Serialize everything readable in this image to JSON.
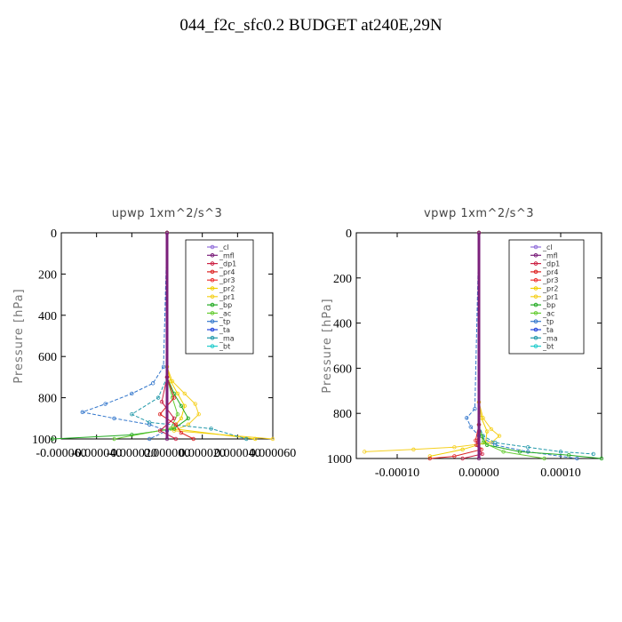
{
  "title": "044_f2c_sfc0.2  BUDGET at240E,29N",
  "legend_entries": [
    "_cl",
    "_mfl",
    "_dp1",
    "_pr4",
    "_pr3",
    "_pr2",
    "_pr1",
    "_bp",
    "_ac",
    "_tp",
    "_ta",
    "_ma",
    "_bt"
  ],
  "colors": {
    "_cl": "#9370db",
    "_mfl": "#7b1f7b",
    "_dp1": "#cc2244",
    "_pr4": "#dd2222",
    "_pr3": "#ee3333",
    "_pr2": "#f0d000",
    "_pr1": "#f5d020",
    "_bp": "#22aa22",
    "_ac": "#66cc33",
    "_tp": "#3377cc",
    "_ta": "#2244dd",
    "_ma": "#2299aa",
    "_bt": "#22cccc"
  },
  "chart_data": [
    {
      "type": "line",
      "title": "upwp   1xm^2/s^3",
      "ylabel": "Pressure [hPa]",
      "xlim": [
        -6e-05,
        6e-05
      ],
      "ylim": [
        1000,
        0
      ],
      "xticks": [
        "-0.000060",
        "-0.000040",
        "-0.000020",
        "0.000000",
        "0.000020",
        "0.000040",
        "0.000060"
      ],
      "yticks": [
        "0",
        "200",
        "400",
        "600",
        "800",
        "1000"
      ],
      "series": [
        {
          "name": "_pr1",
          "x": [
            0,
            0,
            3e-06,
            1e-05,
            1.6e-05,
            1.8e-05,
            1.2e-05,
            4e-06,
            6e-05
          ],
          "y": [
            0,
            650,
            720,
            780,
            830,
            880,
            930,
            960,
            1000
          ]
        },
        {
          "name": "_pr2",
          "x": [
            0,
            0,
            2e-06,
            6e-06,
            1e-05,
            8e-06,
            3e-06,
            5e-05
          ],
          "y": [
            0,
            650,
            720,
            780,
            840,
            900,
            950,
            1000
          ]
        },
        {
          "name": "_tp",
          "x": [
            0,
            -2e-06,
            -8e-06,
            -2e-05,
            -3.5e-05,
            -4.8e-05,
            -3e-05,
            -1e-05,
            0,
            -1e-05
          ],
          "y": [
            0,
            650,
            730,
            780,
            830,
            870,
            900,
            930,
            960,
            1000
          ]
        },
        {
          "name": "_ma",
          "x": [
            0,
            0,
            -5e-06,
            -2e-05,
            -1e-05,
            2.5e-05,
            4.5e-05
          ],
          "y": [
            0,
            700,
            800,
            880,
            920,
            950,
            1000
          ]
        },
        {
          "name": "_bp",
          "x": [
            0,
            0,
            4e-06,
            8e-06,
            1.2e-05,
            4e-06,
            -2e-05,
            -6.5e-05
          ],
          "y": [
            0,
            700,
            780,
            840,
            900,
            950,
            980,
            1000
          ]
        },
        {
          "name": "_ac",
          "x": [
            0,
            0,
            3e-06,
            6e-06,
            2e-06,
            -3e-05
          ],
          "y": [
            0,
            700,
            800,
            880,
            950,
            1000
          ]
        },
        {
          "name": "_pr4",
          "x": [
            0,
            0,
            4e-06,
            -4e-06,
            5e-06,
            8e-06,
            1.5e-05
          ],
          "y": [
            0,
            700,
            800,
            880,
            930,
            970,
            1000
          ]
        },
        {
          "name": "_dp1",
          "x": [
            0,
            0,
            -3e-06,
            4e-06,
            -4e-06,
            5e-06
          ],
          "y": [
            0,
            700,
            820,
            900,
            960,
            1000
          ]
        },
        {
          "name": "_mfl",
          "x": [
            0,
            0
          ],
          "y": [
            0,
            1000
          ]
        }
      ]
    },
    {
      "type": "line",
      "title": "vpwp   1xm^2/s^3",
      "ylabel": "Pressure [hPa]",
      "xlim": [
        -0.00015,
        0.00015
      ],
      "ylim": [
        1000,
        0
      ],
      "xticks": [
        "-0.00010",
        "0.00000",
        "0.00010"
      ],
      "yticks": [
        "0",
        "200",
        "400",
        "600",
        "800",
        "1000"
      ],
      "series": [
        {
          "name": "_pr1",
          "x": [
            0,
            0,
            5e-06,
            1.5e-05,
            2.5e-05,
            1.5e-05,
            -3e-05,
            -8e-05,
            -0.00014
          ],
          "y": [
            0,
            750,
            820,
            870,
            900,
            930,
            950,
            960,
            970
          ]
        },
        {
          "name": "_pr2",
          "x": [
            0,
            0,
            3e-06,
            1e-05,
            8e-06,
            -2e-05,
            -6e-05
          ],
          "y": [
            0,
            750,
            820,
            880,
            930,
            960,
            990
          ]
        },
        {
          "name": "_tp",
          "x": [
            0,
            -5e-06,
            -1.5e-05,
            -1e-05,
            0,
            2e-05,
            6e-05,
            0.00012
          ],
          "y": [
            0,
            780,
            820,
            860,
            900,
            940,
            970,
            1000
          ]
        },
        {
          "name": "_ma",
          "x": [
            0,
            0,
            5e-06,
            2e-05,
            6e-05,
            0.0001,
            0.00014
          ],
          "y": [
            0,
            850,
            900,
            930,
            950,
            970,
            980
          ]
        },
        {
          "name": "_bp",
          "x": [
            0,
            0,
            3e-06,
            1e-05,
            5e-05,
            0.00011,
            0.00015
          ],
          "y": [
            0,
            850,
            900,
            940,
            970,
            985,
            1000
          ]
        },
        {
          "name": "_ac",
          "x": [
            0,
            0,
            5e-06,
            3e-05,
            8e-05
          ],
          "y": [
            0,
            850,
            930,
            970,
            1000
          ]
        },
        {
          "name": "_pr4",
          "x": [
            0,
            0,
            -4e-06,
            3e-06,
            -3e-05,
            -6e-05
          ],
          "y": [
            0,
            850,
            920,
            960,
            990,
            1000
          ]
        },
        {
          "name": "_dp1",
          "x": [
            0,
            0,
            -3e-06,
            4e-06,
            -2e-05
          ],
          "y": [
            0,
            880,
            940,
            980,
            1000
          ]
        },
        {
          "name": "_mfl",
          "x": [
            0,
            0
          ],
          "y": [
            0,
            1000
          ]
        }
      ]
    }
  ]
}
